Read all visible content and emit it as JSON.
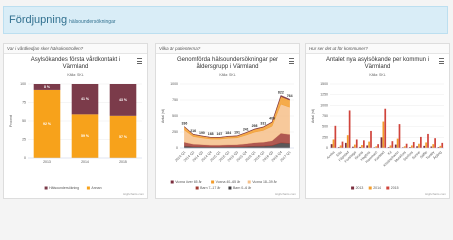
{
  "header": {
    "title": "Fördjupning",
    "subtitle": "hälsoundersökningar"
  },
  "panels": [
    "Var i vårdkedjan sker hälsokontrollen?",
    "Vilka är patienterna?",
    "Hur ser det ut för kommuner?"
  ],
  "chart_data": [
    {
      "type": "bar",
      "stacked": true,
      "title": "Asylsökandes första vårdkontakt i Värmland",
      "subtitle": "Källa: SKL",
      "y_label": "Procent",
      "credits": "Highcharts.com",
      "categories": [
        "2013",
        "2014",
        "2015"
      ],
      "series": [
        {
          "name": "Hälsoundersökning",
          "color": "#7b3b4a",
          "values": [
            8,
            41,
            43
          ],
          "value_labels": [
            "8 %",
            "41 %",
            "43 %"
          ]
        },
        {
          "name": "Annan",
          "color": "#f7a21b",
          "values": [
            92,
            59,
            57
          ],
          "value_labels": [
            "92 %",
            "59 %",
            "57 %"
          ]
        }
      ],
      "ylim": [
        0,
        100
      ],
      "yticks": [
        0,
        25,
        50,
        75,
        100
      ],
      "grid": true
    },
    {
      "type": "area",
      "stacked": true,
      "title": "Genomförda hälsoundersökningar per åldersgrupp i Värmland",
      "subtitle": "Källa: SKL",
      "y_label": "Antal (st)",
      "credits": "Highcharts.com",
      "categories": [
        "2014 Q1",
        "2014 Q2",
        "2014 Q3",
        "2014 Q4",
        "2015 Q1",
        "2015 Q2",
        "2015 Q3",
        "2015 Q4",
        "2016 Q1",
        "2016 Q2",
        "2016 Q3",
        "2016 Q4",
        "2017 Q1"
      ],
      "totals": [
        336,
        216,
        190,
        168,
        167,
        184,
        191,
        241,
        298,
        331,
        409,
        822,
        764
      ],
      "series": [
        {
          "name": "Vuxna över 65 år",
          "color": "#7b2e3e",
          "values": [
            6,
            4,
            4,
            3,
            3,
            4,
            4,
            5,
            6,
            6,
            8,
            17,
            15
          ]
        },
        {
          "name": "Vuxna 40–65 år",
          "color": "#f39c2b",
          "values": [
            50,
            32,
            28,
            25,
            25,
            27,
            28,
            36,
            44,
            50,
            60,
            120,
            112
          ]
        },
        {
          "name": "Vuxna 18–39 år",
          "color": "#f6c08a",
          "values": [
            190,
            120,
            105,
            95,
            94,
            103,
            107,
            135,
            165,
            185,
            228,
            455,
            425
          ]
        },
        {
          "name": "Barn 7–17 år",
          "color": "#a23b32",
          "values": [
            60,
            40,
            35,
            30,
            30,
            33,
            34,
            43,
            55,
            60,
            75,
            150,
            140
          ]
        },
        {
          "name": "Barn 0–6 år",
          "color": "#3d3a3c",
          "values": [
            30,
            20,
            18,
            15,
            15,
            17,
            18,
            22,
            28,
            30,
            38,
            80,
            72
          ]
        }
      ],
      "ylim": [
        0,
        1000
      ],
      "yticks": [
        0,
        250,
        500,
        750,
        1000
      ],
      "grid": true
    },
    {
      "type": "bar",
      "stacked": false,
      "title": "Antalet nya asylsökande per kommun i Värmland",
      "subtitle": "Källa: SKL",
      "y_label": "Antal (st)",
      "credits": "Highcharts.com",
      "categories": [
        "Arvika",
        "Eda",
        "Filipstad",
        "Forshaga",
        "Grums",
        "Hagfors",
        "Hammarö",
        "Karlstad",
        "Kil",
        "Kristinehamn",
        "Munkfors",
        "Storfors",
        "Sunne",
        "Säffle",
        "Torsby",
        "Årjäng"
      ],
      "series": [
        {
          "name": "2013",
          "color": "#7b2e3e",
          "values": [
            90,
            20,
            120,
            30,
            25,
            60,
            15,
            250,
            20,
            80,
            15,
            20,
            40,
            50,
            35,
            20
          ]
        },
        {
          "name": "2014",
          "color": "#f39c2b",
          "values": [
            200,
            60,
            300,
            80,
            70,
            150,
            40,
            620,
            60,
            220,
            40,
            60,
            100,
            130,
            90,
            50
          ]
        },
        {
          "name": "2015",
          "color": "#d0443c",
          "values": [
            520,
            150,
            880,
            200,
            180,
            400,
            90,
            920,
            160,
            560,
            100,
            140,
            260,
            330,
            230,
            120
          ]
        }
      ],
      "ylim": [
        0,
        1500
      ],
      "yticks": [
        0,
        250,
        500,
        750,
        1000,
        1250,
        1500
      ],
      "grid": true
    }
  ]
}
